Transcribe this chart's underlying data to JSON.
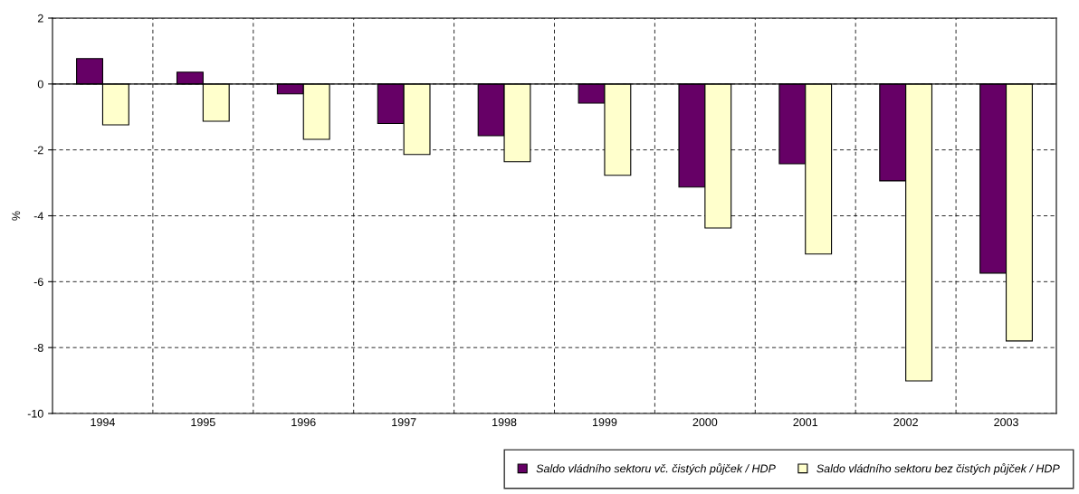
{
  "chart_data": {
    "type": "bar",
    "ylabel": "%",
    "categories": [
      "1994",
      "1995",
      "1996",
      "1997",
      "1998",
      "1999",
      "2000",
      "2001",
      "2002",
      "2003"
    ],
    "series": [
      {
        "name": "Saldo vládního sektoru vč. čistých půjček / HDP",
        "color": "#660066",
        "values": [
          0.77,
          0.36,
          -0.3,
          -1.2,
          -1.57,
          -0.58,
          -3.13,
          -2.42,
          -2.94,
          -5.74
        ]
      },
      {
        "name": "Saldo vládního sektoru bez čistých půjček / HDP",
        "color": "#ffffcc",
        "values": [
          -1.24,
          -1.13,
          -1.68,
          -2.14,
          -2.36,
          -2.77,
          -4.37,
          -5.16,
          -9.01,
          -7.8
        ]
      }
    ],
    "ylim": [
      -10,
      2
    ],
    "yticks": [
      -10,
      -8,
      -6,
      -4,
      -2,
      0,
      2
    ],
    "grid": true,
    "legend": "bottom right"
  }
}
